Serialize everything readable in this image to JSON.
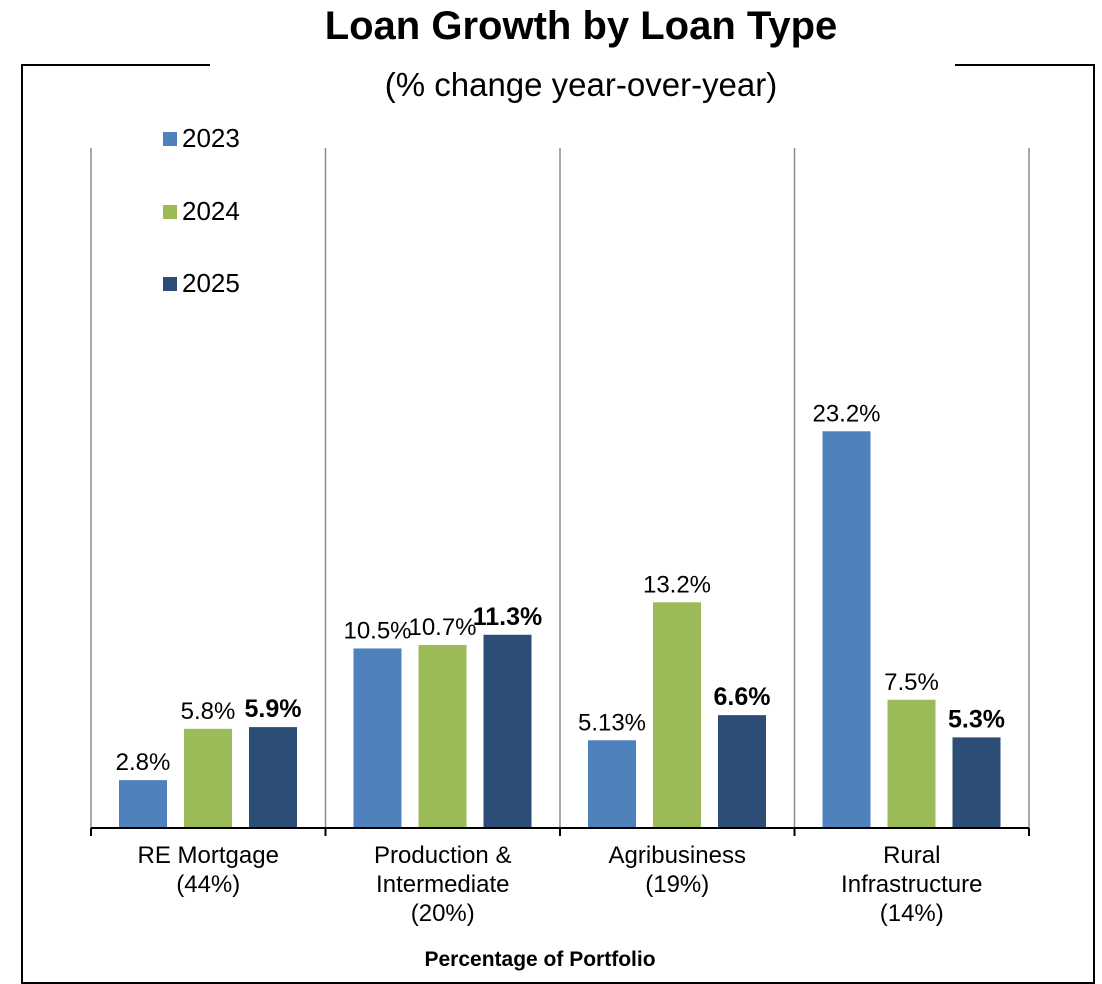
{
  "chart_data": {
    "type": "bar",
    "title": "Loan Growth by Loan Type",
    "subtitle": "(% change year-over-year)",
    "xlabel": "Percentage of Portfolio",
    "ylabel": "",
    "categories": [
      [
        "RE Mortgage",
        "(44%)"
      ],
      [
        "Production &",
        "Intermediate",
        "(20%)"
      ],
      [
        "Agribusiness",
        "(19%)"
      ],
      [
        "Rural",
        "Infrastructure",
        "(14%)"
      ]
    ],
    "series": [
      {
        "name": "2023",
        "color": "#4F81BD",
        "values": [
          2.8,
          10.5,
          5.13,
          23.2
        ],
        "labels": [
          "2.8%",
          "10.5%",
          "5.13%",
          "23.2%"
        ],
        "bold_labels": false
      },
      {
        "name": "2024",
        "color": "#9BBB59",
        "values": [
          5.8,
          10.7,
          13.2,
          7.5
        ],
        "labels": [
          "5.8%",
          "10.7%",
          "13.2%",
          "7.5%"
        ],
        "bold_labels": false
      },
      {
        "name": "2025",
        "color": "#2C4D75",
        "values": [
          5.9,
          11.3,
          6.6,
          5.3
        ],
        "labels": [
          "5.9%",
          "11.3%",
          "6.6%",
          "5.3%"
        ],
        "bold_labels": true
      }
    ],
    "ylim": [
      0,
      25
    ],
    "grid": "vertical category dividers",
    "legend_position": "top-left"
  }
}
